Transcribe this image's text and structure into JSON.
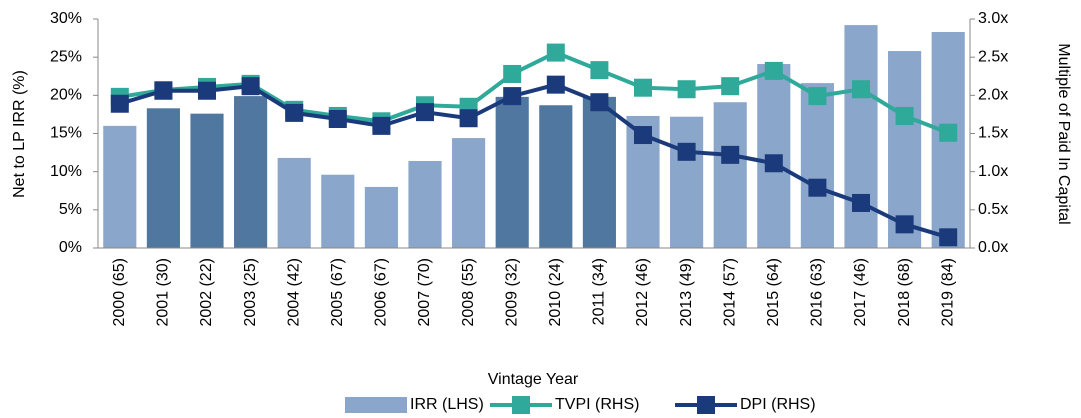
{
  "chart_data": {
    "type": "bar",
    "xlabel": "Vintage Year",
    "ylabel": "Net to LP IRR (%)",
    "y2label": "Multiple of Paid In Capital",
    "categories": [
      "2000 (65)",
      "2001 (30)",
      "2002 (22)",
      "2003 (25)",
      "2004 (42)",
      "2005 (67)",
      "2006 (67)",
      "2007 (70)",
      "2008 (55)",
      "2009 (32)",
      "2010 (24)",
      "2011 (34)",
      "2012 (46)",
      "2013 (49)",
      "2014 (57)",
      "2015 (64)",
      "2016 (63)",
      "2017 (46)",
      "2018 (68)",
      "2019 (84)"
    ],
    "series": [
      {
        "name": "IRR (LHS)",
        "type": "bar",
        "color": "#8aa6ca",
        "colors": [
          "#8aa6ca",
          "#50779f",
          "#50779f",
          "#50779f",
          "#8aa6ca",
          "#8aa6ca",
          "#8aa6ca",
          "#8aa6ca",
          "#8aa6ca",
          "#50779f",
          "#50779f",
          "#50779f",
          "#8aa6ca",
          "#8aa6ca",
          "#8aa6ca",
          "#8aa6ca",
          "#8aa6ca",
          "#8aa6ca",
          "#8aa6ca",
          "#8aa6ca"
        ],
        "values": [
          16.0,
          18.3,
          17.6,
          19.9,
          11.8,
          9.6,
          8.0,
          11.4,
          14.4,
          19.8,
          18.7,
          19.8,
          17.3,
          17.2,
          19.1,
          24.1,
          21.6,
          29.2,
          25.8,
          28.3
        ]
      },
      {
        "name": "TVPI (RHS)",
        "type": "line",
        "axis": "y2",
        "color": "#2ea99a",
        "values": [
          1.98,
          2.07,
          2.11,
          2.15,
          1.81,
          1.73,
          1.66,
          1.87,
          1.85,
          2.28,
          2.56,
          2.33,
          2.1,
          2.08,
          2.12,
          2.32,
          1.99,
          2.08,
          1.73,
          1.51
        ]
      },
      {
        "name": "DPI (RHS)",
        "type": "line",
        "axis": "y2",
        "color": "#1b3a7c",
        "values": [
          1.89,
          2.06,
          2.06,
          2.12,
          1.77,
          1.69,
          1.6,
          1.78,
          1.7,
          1.99,
          2.14,
          1.91,
          1.48,
          1.26,
          1.22,
          1.11,
          0.79,
          0.59,
          0.31,
          0.14
        ]
      }
    ],
    "ylim": [
      0,
      30
    ],
    "yticks": [
      {
        "value": 0,
        "label": "0%"
      },
      {
        "value": 5,
        "label": "5%"
      },
      {
        "value": 10,
        "label": "10%"
      },
      {
        "value": 15,
        "label": "15%"
      },
      {
        "value": 20,
        "label": "20%"
      },
      {
        "value": 25,
        "label": "25%"
      },
      {
        "value": 30,
        "label": "30%"
      }
    ],
    "y2lim": [
      0,
      3
    ],
    "y2ticks": [
      {
        "value": 0,
        "label": "0.0x"
      },
      {
        "value": 0.5,
        "label": "0.5x"
      },
      {
        "value": 1,
        "label": "1.0x"
      },
      {
        "value": 1.5,
        "label": "1.5x"
      },
      {
        "value": 2,
        "label": "2.0x"
      },
      {
        "value": 2.5,
        "label": "2.5x"
      },
      {
        "value": 3,
        "label": "3.0x"
      }
    ],
    "grid": false,
    "legend": "bottom"
  }
}
